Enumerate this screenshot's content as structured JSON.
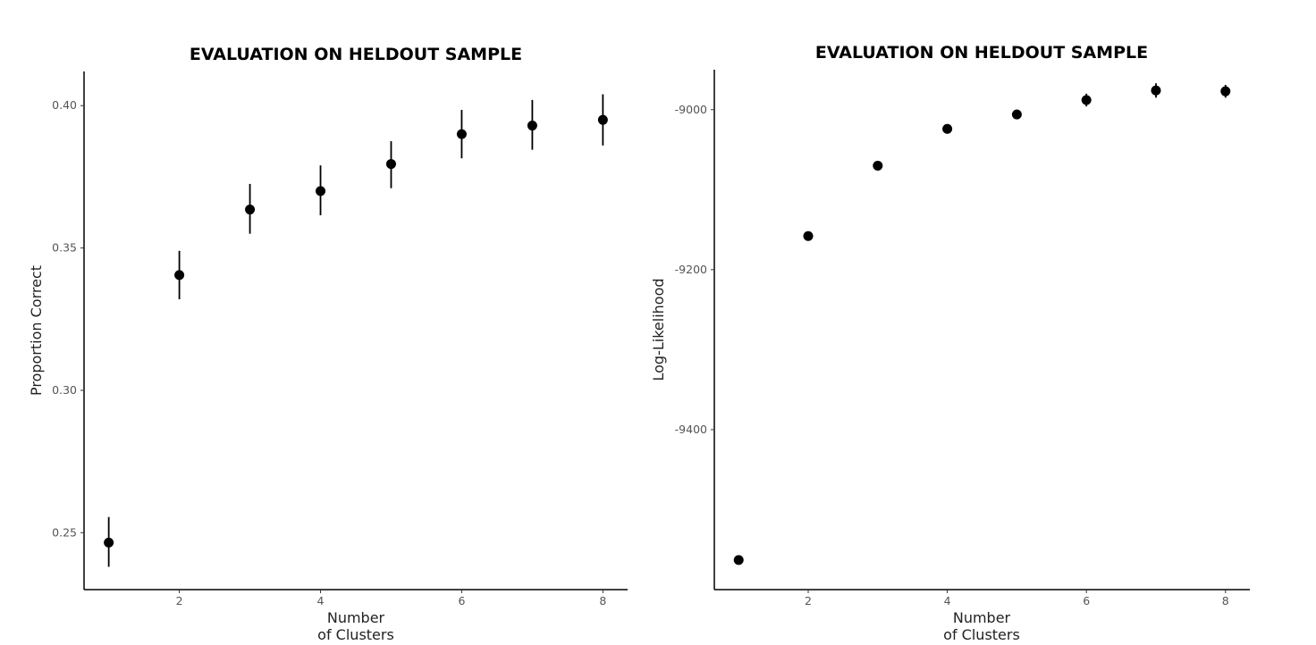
{
  "chart_data": [
    {
      "type": "scatter",
      "title": "EVALUATION ON HELDOUT SAMPLE",
      "xlabel": [
        "Number",
        "of Clusters"
      ],
      "ylabel": "Proportion Correct",
      "xlim": [
        0.65,
        8.35
      ],
      "ylim": [
        0.23,
        0.412
      ],
      "xticks": [
        2,
        4,
        6,
        8
      ],
      "xtick_labels": [
        "2",
        "4",
        "6",
        "8"
      ],
      "yticks": [
        0.25,
        0.3,
        0.35,
        0.4
      ],
      "ytick_labels": [
        "0.25",
        "0.30",
        "0.35",
        "0.40"
      ],
      "grid": false,
      "x": [
        1,
        2,
        3,
        4,
        5,
        6,
        7,
        8
      ],
      "y": [
        0.2465,
        0.3405,
        0.3635,
        0.37,
        0.3795,
        0.39,
        0.393,
        0.395
      ],
      "y_lower": [
        0.238,
        0.332,
        0.355,
        0.3615,
        0.371,
        0.3815,
        0.3845,
        0.386
      ],
      "y_upper": [
        0.2555,
        0.349,
        0.3725,
        0.379,
        0.3875,
        0.3985,
        0.402,
        0.404
      ]
    },
    {
      "type": "scatter",
      "title": "EVALUATION ON HELDOUT SAMPLE",
      "xlabel": [
        "Number",
        "of Clusters"
      ],
      "ylabel": "Log-Likelihood",
      "xlim": [
        0.65,
        8.35
      ],
      "ylim": [
        -9600,
        -8950
      ],
      "xticks": [
        2,
        4,
        6,
        8
      ],
      "xtick_labels": [
        "2",
        "4",
        "6",
        "8"
      ],
      "yticks": [
        -9400,
        -9200,
        -9000
      ],
      "ytick_labels": [
        "-9400",
        "-9200",
        "-9000"
      ],
      "grid": false,
      "x": [
        1,
        2,
        3,
        4,
        5,
        6,
        7,
        8
      ],
      "y": [
        -9563,
        -9158,
        -9070,
        -9024,
        -9006,
        -8988,
        -8976,
        -8977
      ],
      "y_lower": [
        -9566,
        -9162,
        -9075,
        -9030,
        -9012,
        -8996,
        -8985,
        -8985
      ],
      "y_upper": [
        -9560,
        -9154,
        -9065,
        -9018,
        -9000,
        -8980,
        -8967,
        -8969
      ]
    }
  ]
}
